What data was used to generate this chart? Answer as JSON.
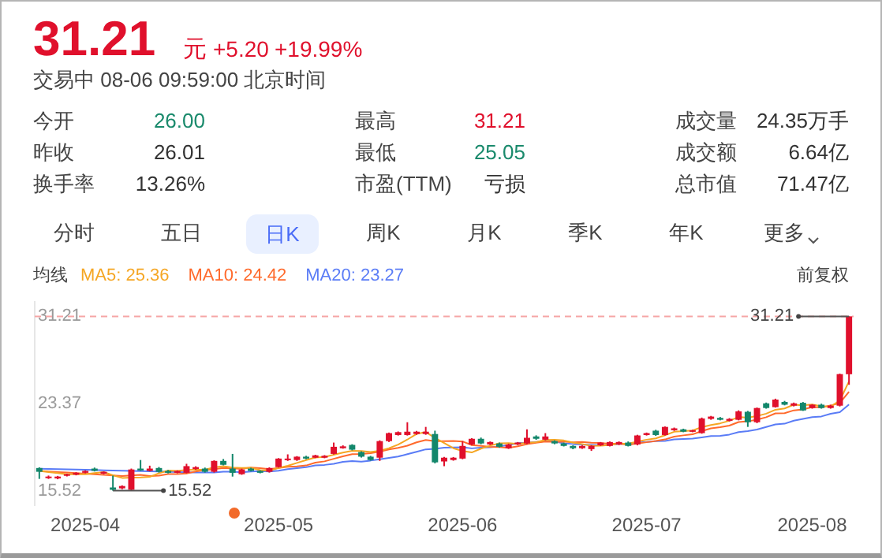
{
  "chart_data": {
    "type": "candlestick",
    "categories": [
      null,
      null,
      null,
      null,
      null,
      "2025-04",
      null,
      null,
      null,
      null,
      null,
      null,
      null,
      null,
      null,
      null,
      null,
      null,
      null,
      null,
      null,
      null,
      null,
      null,
      null,
      null,
      "2025-05",
      null,
      null,
      null,
      null,
      null,
      null,
      null,
      null,
      null,
      null,
      null,
      null,
      null,
      null,
      null,
      null,
      null,
      null,
      null,
      "2025-06",
      null,
      null,
      null,
      null,
      null,
      null,
      null,
      null,
      null,
      null,
      null,
      null,
      null,
      null,
      null,
      null,
      null,
      null,
      null,
      "2025-07",
      null,
      null,
      null,
      null,
      null,
      null,
      null,
      null,
      null,
      null,
      null,
      null,
      null,
      null,
      null,
      null,
      null,
      "2025-08",
      null,
      null,
      null,
      null
    ],
    "ohlc": [
      [
        17.56,
        17.62,
        16.58,
        17.22
      ],
      [
        16.66,
        16.88,
        16.58,
        16.79
      ],
      [
        16.62,
        16.85,
        16.55,
        16.79
      ],
      [
        16.88,
        17.05,
        16.8,
        17.0
      ],
      [
        16.96,
        17.18,
        16.9,
        17.13
      ],
      [
        17.13,
        17.35,
        17.08,
        17.3
      ],
      [
        17.51,
        17.6,
        17.25,
        17.3
      ],
      [
        17.05,
        17.25,
        17.0,
        17.22
      ],
      [
        15.81,
        16.88,
        15.52,
        15.6
      ],
      [
        15.73,
        16.0,
        15.65,
        15.94
      ],
      [
        15.6,
        17.51,
        15.55,
        17.43
      ],
      [
        17.51,
        18.28,
        17.3,
        17.34
      ],
      [
        17.3,
        17.77,
        17.25,
        17.51
      ],
      [
        17.56,
        17.65,
        17.15,
        17.22
      ],
      [
        17.3,
        17.38,
        17.08,
        17.13
      ],
      [
        17.13,
        17.35,
        17.08,
        17.3
      ],
      [
        17.13,
        17.94,
        17.08,
        17.73
      ],
      [
        17.47,
        17.72,
        17.4,
        17.64
      ],
      [
        17.51,
        17.6,
        17.15,
        17.22
      ],
      [
        17.22,
        18.25,
        17.15,
        18.2
      ],
      [
        18.2,
        18.37,
        17.8,
        17.85
      ],
      [
        17.51,
        18.83,
        16.79,
        17.13
      ],
      [
        17.0,
        17.5,
        16.95,
        17.43
      ],
      [
        17.51,
        17.58,
        17.25,
        17.3
      ],
      [
        17.3,
        17.36,
        17.08,
        17.13
      ],
      [
        17.22,
        17.62,
        17.15,
        17.56
      ],
      [
        17.64,
        18.45,
        17.6,
        18.41
      ],
      [
        18.28,
        18.79,
        18.2,
        18.41
      ],
      [
        18.28,
        18.63,
        18.2,
        18.58
      ],
      [
        18.58,
        18.66,
        18.35,
        18.41
      ],
      [
        18.49,
        18.75,
        18.45,
        18.7
      ],
      [
        18.49,
        18.72,
        18.44,
        18.66
      ],
      [
        18.83,
        19.85,
        18.78,
        19.47
      ],
      [
        19.34,
        19.6,
        19.3,
        19.51
      ],
      [
        19.64,
        19.7,
        19.15,
        19.21
      ],
      [
        19.0,
        19.06,
        18.5,
        18.58
      ],
      [
        18.58,
        18.65,
        18.22,
        18.28
      ],
      [
        18.49,
        20.05,
        18.2,
        19.98
      ],
      [
        19.98,
        20.75,
        19.9,
        20.7
      ],
      [
        20.53,
        20.85,
        20.48,
        20.79
      ],
      [
        20.53,
        21.68,
        20.48,
        20.83
      ],
      [
        20.62,
        20.9,
        20.55,
        20.83
      ],
      [
        20.62,
        21.26,
        20.55,
        20.83
      ],
      [
        20.62,
        20.92,
        17.98,
        18.07
      ],
      [
        18.15,
        18.55,
        17.73,
        18.49
      ],
      [
        18.28,
        18.55,
        18.22,
        18.49
      ],
      [
        18.41,
        19.98,
        18.35,
        19.55
      ],
      [
        19.68,
        20.25,
        19.6,
        20.19
      ],
      [
        20.19,
        20.3,
        19.7,
        19.77
      ],
      [
        19.68,
        19.95,
        19.62,
        19.9
      ],
      [
        19.77,
        19.85,
        19.4,
        19.47
      ],
      [
        19.34,
        19.75,
        19.28,
        19.68
      ],
      [
        19.68,
        19.9,
        19.62,
        19.85
      ],
      [
        19.77,
        21.04,
        19.7,
        20.28
      ],
      [
        20.4,
        20.5,
        20.1,
        20.19
      ],
      [
        20.11,
        20.7,
        20.05,
        20.4
      ],
      [
        19.98,
        20.05,
        19.7,
        19.77
      ],
      [
        19.77,
        19.85,
        19.5,
        19.55
      ],
      [
        19.55,
        19.6,
        19.25,
        19.34
      ],
      [
        19.34,
        19.6,
        19.28,
        19.55
      ],
      [
        19.26,
        19.6,
        19.1,
        19.55
      ],
      [
        19.6,
        19.9,
        19.55,
        19.85
      ],
      [
        19.55,
        19.95,
        19.5,
        19.9
      ],
      [
        19.68,
        19.95,
        19.62,
        19.9
      ],
      [
        19.85,
        19.95,
        19.5,
        19.55
      ],
      [
        19.68,
        20.55,
        19.6,
        20.49
      ],
      [
        20.53,
        20.75,
        20.48,
        20.7
      ],
      [
        20.92,
        21.0,
        20.45,
        20.53
      ],
      [
        20.53,
        21.3,
        20.48,
        21.26
      ],
      [
        20.96,
        21.2,
        20.9,
        21.13
      ],
      [
        21.04,
        21.1,
        20.78,
        20.83
      ],
      [
        20.83,
        21.0,
        20.78,
        20.96
      ],
      [
        20.7,
        22.1,
        20.65,
        22.02
      ],
      [
        21.98,
        22.25,
        21.9,
        22.19
      ],
      [
        22.07,
        22.15,
        21.85,
        21.9
      ],
      [
        21.81,
        22.05,
        21.75,
        21.98
      ],
      [
        21.9,
        22.75,
        21.85,
        22.66
      ],
      [
        22.62,
        22.7,
        21.26,
        21.68
      ],
      [
        21.68,
        23.0,
        21.6,
        22.96
      ],
      [
        23.38,
        23.45,
        22.9,
        22.96
      ],
      [
        23.04,
        23.8,
        23.0,
        23.72
      ],
      [
        23.51,
        23.6,
        23.2,
        23.26
      ],
      [
        23.17,
        23.45,
        23.1,
        23.38
      ],
      [
        23.43,
        23.5,
        22.7,
        22.74
      ],
      [
        22.96,
        23.3,
        22.9,
        23.26
      ],
      [
        23.26,
        23.35,
        22.9,
        22.96
      ],
      [
        22.96,
        23.25,
        22.9,
        23.17
      ],
      [
        23.17,
        26.05,
        23.1,
        26.01
      ],
      [
        26.0,
        31.21,
        25.05,
        31.21
      ]
    ],
    "series": [
      {
        "name": "MA5: 25.36",
        "type": "line",
        "color": "#f5a623",
        "values": [
          17.3,
          17.2,
          17.1,
          17.0,
          16.99,
          17.0,
          17.1,
          17.19,
          16.91,
          16.67,
          16.7,
          16.71,
          16.76,
          17.09,
          17.33,
          17.3,
          17.38,
          17.4,
          17.4,
          17.62,
          17.73,
          17.61,
          17.57,
          17.58,
          17.37,
          17.31,
          17.57,
          17.76,
          18.02,
          18.27,
          18.5,
          18.55,
          18.76,
          18.95,
          19.11,
          19.09,
          19.01,
          19.11,
          19.35,
          19.67,
          20.12,
          20.63,
          20.8,
          20.27,
          19.81,
          19.34,
          19.09,
          18.96,
          19.3,
          19.58,
          19.78,
          19.8,
          19.73,
          19.84,
          19.89,
          20.08,
          20.1,
          20.04,
          19.85,
          19.72,
          19.55,
          19.57,
          19.64,
          19.75,
          19.75,
          19.94,
          20.11,
          20.23,
          20.51,
          20.82,
          20.89,
          20.94,
          21.24,
          21.43,
          21.58,
          21.81,
          22.15,
          22.08,
          22.24,
          22.45,
          22.8,
          22.92,
          23.26,
          23.21,
          23.27,
          23.12,
          23.1,
          23.63,
          25.36
        ]
      },
      {
        "name": "MA10: 24.42",
        "type": "line",
        "color": "#ff6a2c",
        "values": [
          17.3,
          17.25,
          17.2,
          17.15,
          17.1,
          17.05,
          17.0,
          16.95,
          16.9,
          16.84,
          16.9,
          16.95,
          16.84,
          16.88,
          17.02,
          17.01,
          17.07,
          17.25,
          17.37,
          17.46,
          17.56,
          17.51,
          17.49,
          17.6,
          17.55,
          17.46,
          17.57,
          17.67,
          17.7,
          17.79,
          18.04,
          18.16,
          18.39,
          18.61,
          18.81,
          18.82,
          18.89,
          19.03,
          19.23,
          19.38,
          19.57,
          19.87,
          20.08,
          19.97,
          19.97,
          19.99,
          19.95,
          19.62,
          19.56,
          19.46,
          19.44,
          19.38,
          19.52,
          19.71,
          19.84,
          19.94,
          19.92,
          19.94,
          19.87,
          19.9,
          19.83,
          19.81,
          19.75,
          19.74,
          19.65,
          19.76,
          19.88,
          19.99,
          20.13,
          20.38,
          20.5,
          20.59,
          20.88,
          21.13,
          21.24,
          21.38,
          21.7,
          21.76,
          21.91,
          22.13,
          22.48,
          22.5,
          22.75,
          22.83,
          23.04,
          23.02,
          23.18,
          23.42,
          24.42
        ]
      },
      {
        "name": "MA20: 23.27",
        "type": "line",
        "color": "#5a7cf6",
        "values": [
          17.5,
          17.48,
          17.46,
          17.44,
          17.42,
          17.4,
          17.38,
          17.36,
          17.34,
          17.32,
          17.3,
          17.28,
          17.26,
          17.24,
          17.22,
          17.2,
          17.18,
          17.16,
          17.15,
          17.15,
          17.23,
          17.23,
          17.17,
          17.24,
          17.29,
          17.24,
          17.32,
          17.46,
          17.54,
          17.63,
          17.8,
          17.84,
          17.94,
          18.11,
          18.18,
          18.14,
          18.23,
          18.35,
          18.47,
          18.59,
          18.81,
          19.02,
          19.24,
          19.29,
          19.39,
          19.41,
          19.42,
          19.33,
          19.4,
          19.42,
          19.51,
          19.63,
          19.8,
          19.84,
          19.91,
          19.97,
          19.94,
          19.78,
          19.72,
          19.68,
          19.64,
          19.6,
          19.64,
          19.73,
          19.75,
          19.85,
          19.9,
          19.97,
          20.0,
          20.14,
          20.17,
          20.2,
          20.32,
          20.44,
          20.45,
          20.57,
          20.79,
          20.88,
          21.02,
          21.26,
          21.49,
          21.55,
          21.82,
          21.98,
          22.14,
          22.2,
          22.44,
          22.59,
          23.27
        ]
      }
    ],
    "ylim": [
      14.2,
      32.5
    ],
    "yticks": [
      15.52,
      23.37,
      31.21
    ],
    "ref_lines": [
      {
        "axis": "y",
        "value": 31.21,
        "color": "#f6a5a5",
        "line_style": "dashed"
      }
    ],
    "legend": "top left",
    "legend_title": "均线",
    "annotations": [
      "31.21",
      "元",
      "+5.20",
      "+19.99%",
      "交易中 08-06 09:59:00 北京时间",
      "今开",
      "26.00",
      "最高",
      "31.21",
      "成交量",
      "24.35万手",
      "昨收",
      "26.01",
      "最低",
      "25.05",
      "成交额",
      "6.64亿",
      "换手率",
      "13.26%",
      "市盈(TTM)",
      "亏损",
      "总市值",
      "71.47亿",
      "分时",
      "五日",
      "日K",
      "周K",
      "月K",
      "季K",
      "年K",
      "更多",
      "前复权",
      "15.52",
      "31.21"
    ]
  }
}
